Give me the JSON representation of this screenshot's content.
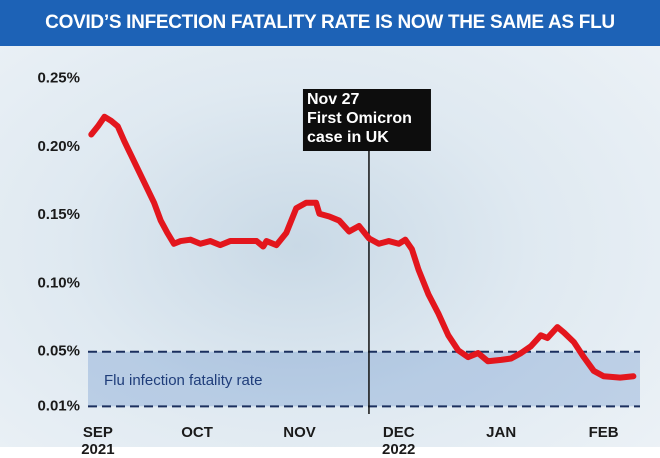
{
  "chart_data": {
    "type": "line",
    "title": "COVID’S INFECTION FATALITY RATE IS NOW THE SAME AS FLU",
    "x": [
      -2,
      0,
      2,
      4,
      6,
      8,
      11,
      14,
      17,
      19,
      21,
      23,
      25,
      28,
      31,
      34,
      37,
      40,
      44,
      48,
      50,
      51,
      54,
      57,
      60,
      63,
      66,
      67,
      70,
      73,
      76,
      79,
      82,
      85,
      88,
      91,
      93,
      95,
      97,
      100,
      103,
      106,
      109,
      112,
      115,
      118,
      122,
      125,
      128,
      131,
      134,
      136,
      139,
      141,
      144,
      147,
      150,
      153,
      158,
      162
    ],
    "series": [
      {
        "name": "Infection fatality rate",
        "color": "#e3161d",
        "values": [
          0.209,
          0.215,
          0.222,
          0.219,
          0.215,
          0.204,
          0.189,
          0.174,
          0.159,
          0.146,
          0.137,
          0.129,
          0.131,
          0.132,
          0.129,
          0.131,
          0.128,
          0.131,
          0.131,
          0.131,
          0.127,
          0.131,
          0.128,
          0.137,
          0.155,
          0.159,
          0.159,
          0.151,
          0.149,
          0.146,
          0.138,
          0.142,
          0.133,
          0.129,
          0.131,
          0.129,
          0.132,
          0.125,
          0.11,
          0.092,
          0.078,
          0.062,
          0.051,
          0.046,
          0.049,
          0.043,
          0.044,
          0.045,
          0.049,
          0.054,
          0.062,
          0.06,
          0.068,
          0.064,
          0.057,
          0.046,
          0.036,
          0.032,
          0.031,
          0.032
        ]
      }
    ],
    "xlim": [
      -3,
      164
    ],
    "xticks": [
      {
        "value": 0,
        "label": "SEP 2021"
      },
      {
        "value": 30,
        "label": "OCT"
      },
      {
        "value": 61,
        "label": "NOV"
      },
      {
        "value": 91,
        "label": "DEC 2022"
      },
      {
        "value": 122,
        "label": "JAN"
      },
      {
        "value": 153,
        "label": "FEB"
      }
    ],
    "ylim": [
      0.0,
      0.265
    ],
    "yticks": [
      {
        "value": 0.25,
        "label": "0.25%"
      },
      {
        "value": 0.2,
        "label": "0.20%"
      },
      {
        "value": 0.15,
        "label": "0.15%"
      },
      {
        "value": 0.1,
        "label": "0.10%"
      },
      {
        "value": 0.05,
        "label": "0.05%"
      },
      {
        "value": 0.01,
        "label": "0.01%"
      }
    ],
    "grid": false,
    "band": {
      "label": "Flu infection fatality rate",
      "low": 0.01,
      "high": 0.05,
      "color": "#2a64b4"
    },
    "annotation": {
      "lines": [
        "Nov 27",
        "First Omicron",
        "case in UK"
      ],
      "x": 82
    }
  }
}
